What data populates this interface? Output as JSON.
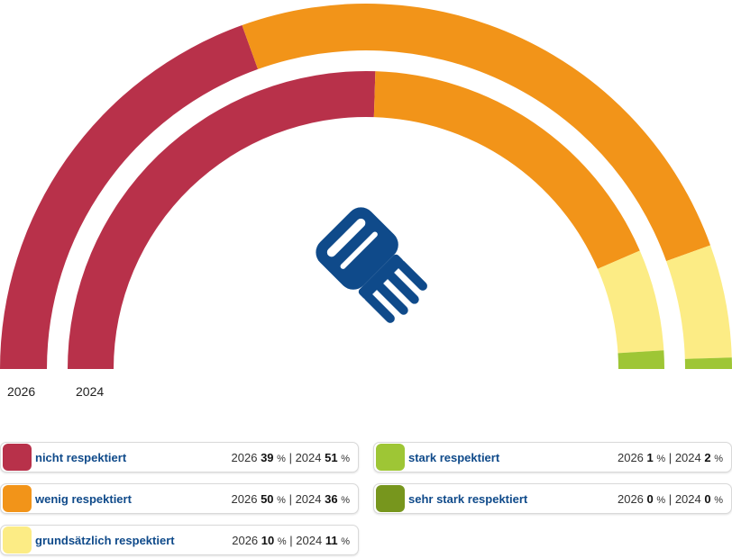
{
  "chart_data": {
    "type": "pie",
    "variant": "semicircle-donut",
    "rings": [
      "2026",
      "2024"
    ],
    "categories": [
      "nicht respektiert",
      "wenig respektiert",
      "grundsätzlich respektiert",
      "stark respektiert",
      "sehr stark respektiert"
    ],
    "colors": [
      "#b8314a",
      "#f29419",
      "#fcec85",
      "#9ec635",
      "#77961d"
    ],
    "series": [
      {
        "name": "2026",
        "values": [
          39,
          50,
          10,
          1,
          0
        ]
      },
      {
        "name": "2024",
        "values": [
          51,
          36,
          11,
          2,
          0
        ]
      }
    ],
    "unit": "%",
    "legend": {
      "items": [
        {
          "label": "nicht respektiert",
          "year1": "2026",
          "v1": "39",
          "year2": "2024",
          "v2": "51",
          "pct": "%",
          "sep": "|"
        },
        {
          "label": "wenig respektiert",
          "year1": "2026",
          "v1": "50",
          "year2": "2024",
          "v2": "36",
          "pct": "%",
          "sep": "|"
        },
        {
          "label": "grundsätzlich respektiert",
          "year1": "2026",
          "v1": "10",
          "year2": "2024",
          "v2": "11",
          "pct": "%",
          "sep": "|"
        },
        {
          "label": "stark respektiert",
          "year1": "2026",
          "v1": "1",
          "year2": "2024",
          "v2": "2",
          "pct": "%",
          "sep": "|"
        },
        {
          "label": "sehr stark respektiert",
          "year1": "2026",
          "v1": "0",
          "year2": "2024",
          "v2": "0",
          "pct": "%",
          "sep": "|"
        }
      ]
    },
    "center_icon": "handshake-icon",
    "icon_color": "#0f4a8a"
  }
}
